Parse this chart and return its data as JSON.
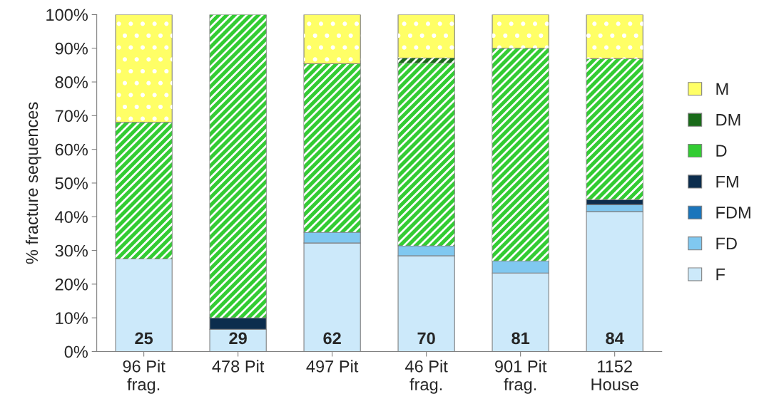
{
  "chart_data": {
    "type": "bar",
    "stacked": true,
    "ylabel": "% fracture sequences",
    "categories": [
      "96 Pit\nfrag.",
      "478 Pit",
      "497 Pit",
      "46 Pit\nfrag.",
      "901 Pit\nfrag.",
      "1152\nHouse"
    ],
    "series": [
      {
        "name": "F",
        "color": "#cce9fa",
        "values": [
          27.5,
          6.6,
          32.2,
          28.4,
          23.3,
          41.5
        ]
      },
      {
        "name": "FD",
        "color": "#80c8f0",
        "values": [
          0,
          0,
          3.2,
          3.0,
          3.6,
          2.1
        ]
      },
      {
        "name": "FDM",
        "color": "#1b75bb",
        "values": [
          0,
          0,
          0,
          0,
          0,
          0
        ]
      },
      {
        "name": "FM",
        "color": "#0c2d4d",
        "values": [
          0,
          3.4,
          0,
          0,
          0,
          1.5
        ]
      },
      {
        "name": "D",
        "color": "#33cc33",
        "values": [
          40.5,
          90.0,
          50.0,
          54.2,
          63.1,
          41.8
        ]
      },
      {
        "name": "DM",
        "color": "#1a6b1a",
        "values": [
          0,
          0,
          0,
          1.5,
          0,
          0
        ]
      },
      {
        "name": "M",
        "color": "#ffff66",
        "values": [
          32.0,
          0,
          14.6,
          12.9,
          10.0,
          13.1
        ]
      }
    ],
    "annotations": [
      "25",
      "29",
      "62",
      "70",
      "81",
      "84"
    ],
    "ylim": [
      0,
      100
    ],
    "yticks": [
      {
        "value": 0,
        "label": "0%"
      },
      {
        "value": 10,
        "label": "10%"
      },
      {
        "value": 20,
        "label": "20%"
      },
      {
        "value": 30,
        "label": "30%"
      },
      {
        "value": 40,
        "label": "40%"
      },
      {
        "value": 50,
        "label": "50%"
      },
      {
        "value": 60,
        "label": "60%"
      },
      {
        "value": 70,
        "label": "70%"
      },
      {
        "value": 80,
        "label": "80%"
      },
      {
        "value": 90,
        "label": "90%"
      },
      {
        "value": 100,
        "label": "100%"
      }
    ],
    "grid": false,
    "legend": "right"
  }
}
